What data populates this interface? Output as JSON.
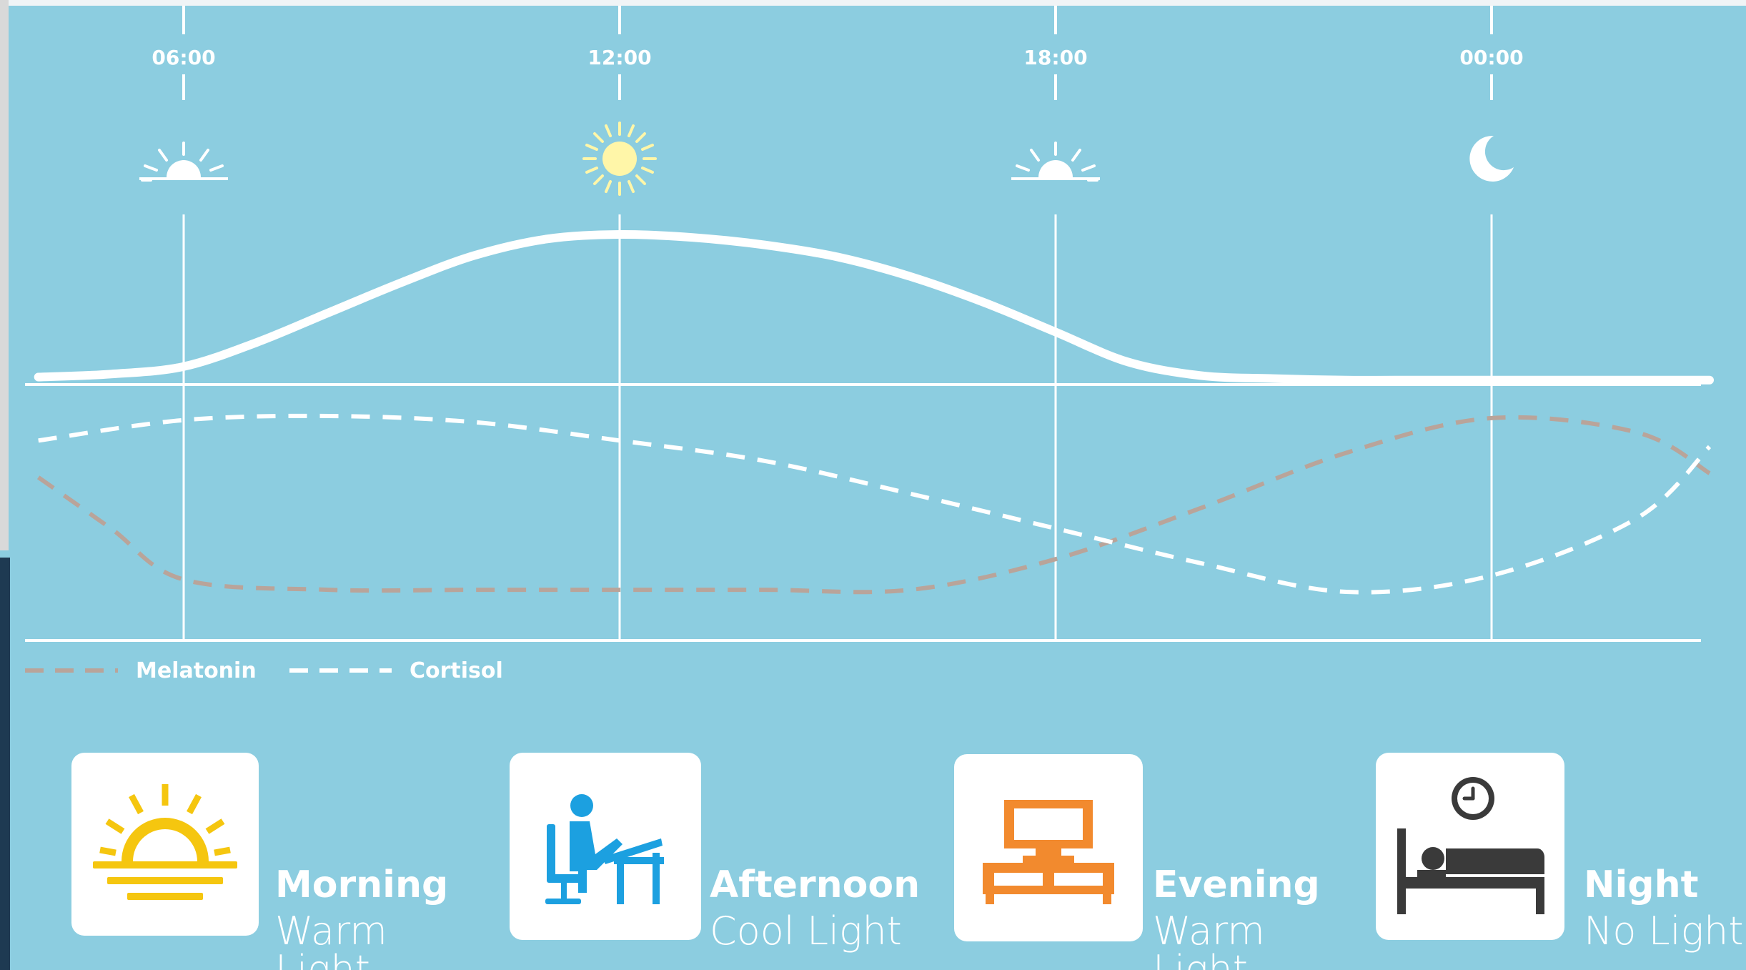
{
  "chart_data": {
    "type": "line",
    "x_ticks": [
      "06:00",
      "12:00",
      "18:00",
      "00:00"
    ],
    "series": [
      {
        "name": "Melatonin",
        "style": "dashed",
        "color": "#b9a49a",
        "x": [
          4,
          5,
          6,
          8,
          10,
          12,
          14,
          16,
          18,
          20,
          22,
          24,
          26,
          27
        ],
        "y": [
          0.7,
          0.45,
          0.2,
          0.15,
          0.15,
          0.15,
          0.15,
          0.15,
          0.3,
          0.55,
          0.82,
          0.99,
          0.92,
          0.72
        ]
      },
      {
        "name": "Cortisol",
        "style": "dashed",
        "color": "#ffffff",
        "x": [
          4,
          6,
          8,
          10,
          12,
          14,
          16,
          18,
          20,
          22,
          24,
          26,
          27
        ],
        "y": [
          0.88,
          0.98,
          1.0,
          0.97,
          0.88,
          0.78,
          0.62,
          0.45,
          0.28,
          0.14,
          0.22,
          0.5,
          0.85
        ]
      }
    ],
    "light_curve": {
      "x": [
        4,
        5,
        6,
        7,
        8,
        9,
        10,
        11,
        12,
        13,
        14,
        15,
        16,
        17,
        18,
        19,
        20,
        21,
        22,
        23,
        24,
        25,
        26,
        27
      ],
      "y": [
        0.05,
        0.07,
        0.12,
        0.28,
        0.48,
        0.68,
        0.86,
        0.97,
        1.0,
        0.98,
        0.93,
        0.85,
        0.72,
        0.55,
        0.35,
        0.15,
        0.06,
        0.04,
        0.03,
        0.03,
        0.03,
        0.03,
        0.03,
        0.03
      ]
    },
    "legend": {
      "placement": "bottom-left",
      "entries": [
        "Melatonin",
        "Cortisol"
      ]
    },
    "time_icons": [
      "sunrise-icon",
      "sun-icon",
      "sunset-icon",
      "moon-icon"
    ],
    "grid": true
  },
  "colors": {
    "background": "#8ccde0",
    "line": "#ffffff",
    "melatonin": "#b9a49a",
    "sun_fill": "#fff6a8",
    "morning_icon": "#f5c60f",
    "afternoon_icon": "#1ca0e0",
    "evening_icon": "#f28a2e",
    "night_icon": "#3a3a3a"
  },
  "periods": [
    {
      "title": "Morning",
      "subtitle": "Warm Light",
      "icon": "sunrise-icon"
    },
    {
      "title": "Afternoon",
      "subtitle": "Cool Light",
      "icon": "person-at-desk-icon"
    },
    {
      "title": "Evening",
      "subtitle": "Warm Light",
      "icon": "tv-stand-icon"
    },
    {
      "title": "Night",
      "subtitle": "No Light",
      "icon": "bed-clock-icon"
    }
  ]
}
